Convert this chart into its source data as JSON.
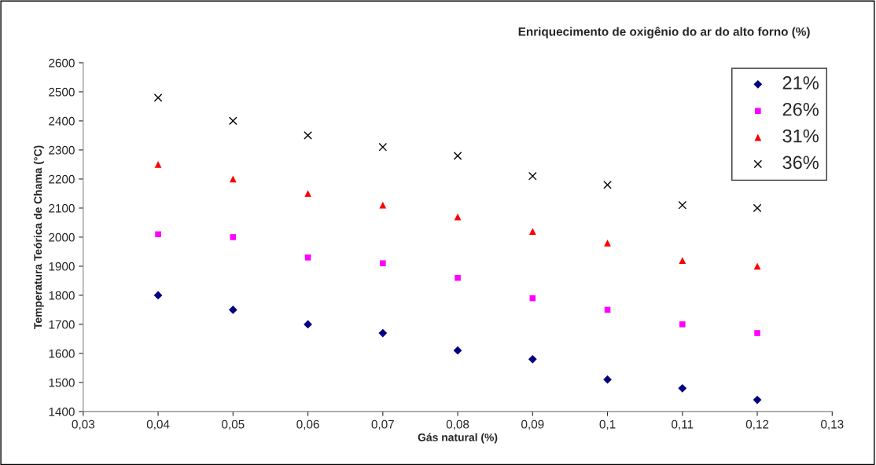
{
  "chart_data": {
    "type": "scatter",
    "title": "Enriquecimento de oxigênio do ar do alto forno (%)",
    "xlabel": "Gás natural (%)",
    "ylabel": "Temperatura Teórica de Chama (°C)",
    "x": [
      0.04,
      0.05,
      0.06,
      0.07,
      0.08,
      0.09,
      0.1,
      0.11,
      0.12
    ],
    "series": [
      {
        "name": "21%",
        "color": "#000080",
        "marker": "diamond",
        "values": [
          1800,
          1750,
          1700,
          1670,
          1610,
          1580,
          1510,
          1480,
          1440
        ]
      },
      {
        "name": "26%",
        "color": "#ff00ff",
        "marker": "square",
        "values": [
          2010,
          2000,
          1930,
          1910,
          1860,
          1790,
          1750,
          1700,
          1670
        ]
      },
      {
        "name": "31%",
        "color": "#ff0000",
        "marker": "triangle",
        "values": [
          2250,
          2200,
          2150,
          2110,
          2070,
          2020,
          1980,
          1920,
          1900
        ]
      },
      {
        "name": "36%",
        "color": "#000000",
        "marker": "cross",
        "values": [
          2480,
          2400,
          2350,
          2310,
          2280,
          2210,
          2180,
          2110,
          2100
        ]
      }
    ],
    "xlim": [
      0.03,
      0.13
    ],
    "xticks": [
      {
        "value": 0.03,
        "label": "0,03"
      },
      {
        "value": 0.04,
        "label": "0,04"
      },
      {
        "value": 0.05,
        "label": "0,05"
      },
      {
        "value": 0.06,
        "label": "0,06"
      },
      {
        "value": 0.07,
        "label": "0,07"
      },
      {
        "value": 0.08,
        "label": "0,08"
      },
      {
        "value": 0.09,
        "label": "0,09"
      },
      {
        "value": 0.1,
        "label": "0,1"
      },
      {
        "value": 0.11,
        "label": "0,11"
      },
      {
        "value": 0.12,
        "label": "0,12"
      },
      {
        "value": 0.13,
        "label": "0,13"
      }
    ],
    "ylim": [
      1400,
      2600
    ],
    "yticks": [
      1400,
      1500,
      1600,
      1700,
      1800,
      1900,
      2000,
      2100,
      2200,
      2300,
      2400,
      2500,
      2600
    ],
    "grid": false,
    "legend": "top right"
  }
}
